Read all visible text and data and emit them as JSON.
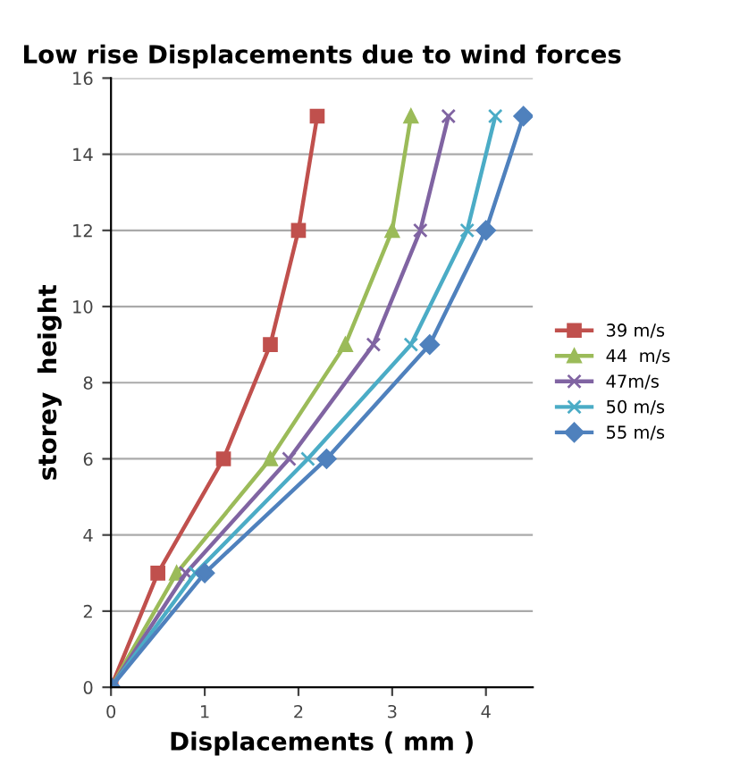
{
  "chart_data": {
    "type": "line",
    "title": "Low rise Displacements due to wind forces",
    "xlabel": "Displacements ( mm )",
    "ylabel": "storey  height",
    "xlim": [
      0,
      4.5
    ],
    "xticks": [
      0,
      1,
      2,
      3,
      4
    ],
    "ylim": [
      0,
      16
    ],
    "yticks": [
      0,
      2,
      4,
      6,
      8,
      10,
      12,
      14,
      16
    ],
    "grid": "y",
    "legend": "right",
    "series": [
      {
        "name": "39 m/s",
        "color": "#c0504d",
        "marker": "square",
        "x": [
          0,
          0.5,
          1.2,
          1.7,
          2.0,
          2.2
        ],
        "values": [
          0,
          3,
          6,
          9,
          12,
          15
        ]
      },
      {
        "name": "44  m/s",
        "color": "#9bbb59",
        "marker": "triangle",
        "x": [
          0,
          0.7,
          1.7,
          2.5,
          3.0,
          3.2
        ],
        "values": [
          0,
          3,
          6,
          9,
          12,
          15
        ]
      },
      {
        "name": "47m/s",
        "color": "#8064a2",
        "marker": "cross",
        "x": [
          0,
          0.8,
          1.9,
          2.8,
          3.3,
          3.6
        ],
        "values": [
          0,
          3,
          6,
          9,
          12,
          15
        ]
      },
      {
        "name": "50 m/s",
        "color": "#4bacc6",
        "marker": "cross",
        "x": [
          0,
          0.9,
          2.1,
          3.2,
          3.8,
          4.1
        ],
        "values": [
          0,
          3,
          6,
          9,
          12,
          15
        ]
      },
      {
        "name": "55 m/s",
        "color": "#4f81bd",
        "marker": "diamond",
        "x": [
          0,
          1.0,
          2.3,
          3.4,
          4.0,
          4.4
        ],
        "values": [
          0,
          3,
          6,
          9,
          12,
          15
        ]
      }
    ]
  }
}
